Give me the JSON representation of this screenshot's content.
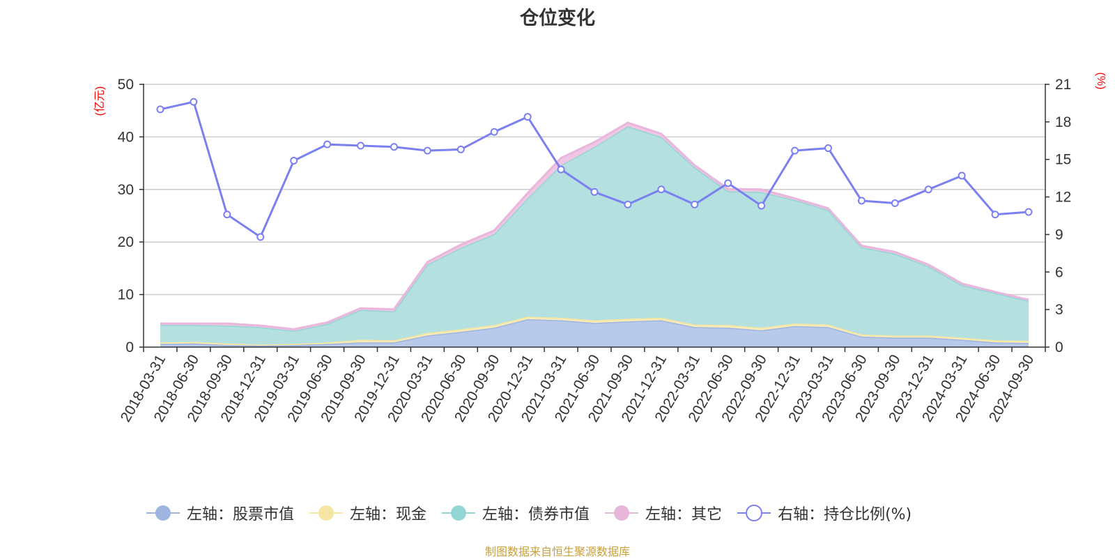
{
  "chart_data": {
    "type": "area",
    "title": "仓位变化",
    "y_left_label": "(亿元)",
    "y_right_label": "(%)",
    "y_left_lim": [
      0,
      50
    ],
    "y_left_ticks": [
      0,
      10,
      20,
      30,
      40,
      50
    ],
    "y_right_lim": [
      0,
      21
    ],
    "y_right_ticks": [
      0,
      3,
      6,
      9,
      12,
      15,
      18,
      21
    ],
    "grid": true,
    "legend_position": "bottom",
    "x": [
      "2018-03-31",
      "2018-06-30",
      "2018-09-30",
      "2018-12-31",
      "2019-03-31",
      "2019-06-30",
      "2019-09-30",
      "2019-12-31",
      "2020-03-31",
      "2020-06-30",
      "2020-09-30",
      "2020-12-31",
      "2021-03-31",
      "2021-06-30",
      "2021-09-30",
      "2021-12-31",
      "2022-03-31",
      "2022-06-30",
      "2022-09-30",
      "2022-12-31",
      "2023-03-31",
      "2023-06-30",
      "2023-09-30",
      "2023-12-31",
      "2024-03-31",
      "2024-06-30",
      "2024-09-30"
    ],
    "series": [
      {
        "name": "左轴：股票市值",
        "axis": "left",
        "stack": true,
        "color": "#9db5e0",
        "fill": "#b8c9ea",
        "values": [
          0.6,
          0.7,
          0.4,
          0.3,
          0.4,
          0.6,
          0.9,
          0.9,
          2.2,
          2.9,
          3.7,
          5.3,
          5.1,
          4.6,
          4.9,
          5.1,
          3.8,
          3.7,
          3.2,
          4.0,
          3.8,
          2.0,
          1.8,
          1.8,
          1.4,
          0.9,
          0.8
        ]
      },
      {
        "name": "左轴：现金",
        "axis": "left",
        "stack": true,
        "color": "#f6e6a3",
        "fill": "#f7eab8",
        "values": [
          0.3,
          0.3,
          0.3,
          0.2,
          0.2,
          0.3,
          0.5,
          0.4,
          0.5,
          0.5,
          0.5,
          0.5,
          0.5,
          0.5,
          0.5,
          0.5,
          0.5,
          0.5,
          0.5,
          0.5,
          0.5,
          0.4,
          0.4,
          0.4,
          0.4,
          0.4,
          0.4
        ]
      },
      {
        "name": "左轴：债券市值",
        "axis": "left",
        "stack": true,
        "color": "#94d5d6",
        "fill": "#b4e0e0",
        "values": [
          3.3,
          3.2,
          3.4,
          3.3,
          2.5,
          3.5,
          5.7,
          5.5,
          13.0,
          15.5,
          17.3,
          22.5,
          29.0,
          33.0,
          36.6,
          34.4,
          29.9,
          25.5,
          25.8,
          23.5,
          21.8,
          16.6,
          15.6,
          13.2,
          10.0,
          9.0,
          7.6
        ]
      },
      {
        "name": "左轴：其它",
        "axis": "left",
        "stack": true,
        "color": "#e9b6dc",
        "fill": "#efc6e3",
        "values": [
          0.3,
          0.3,
          0.4,
          0.3,
          0.3,
          0.3,
          0.3,
          0.4,
          0.5,
          0.6,
          0.7,
          1.0,
          1.4,
          0.9,
          0.7,
          0.6,
          0.4,
          0.4,
          0.5,
          0.3,
          0.3,
          0.3,
          0.3,
          0.3,
          0.3,
          0.2,
          0.2
        ]
      },
      {
        "name": "右轴：持仓比例(%)",
        "axis": "right",
        "stack": false,
        "color": "#7b80f0",
        "values": [
          19.0,
          19.6,
          10.6,
          8.8,
          14.9,
          16.2,
          16.1,
          16.0,
          15.7,
          15.8,
          17.2,
          18.4,
          14.2,
          12.4,
          11.4,
          12.6,
          11.4,
          13.1,
          11.3,
          15.7,
          15.9,
          11.7,
          11.5,
          12.6,
          13.7,
          10.6,
          10.8
        ]
      }
    ]
  },
  "footer": "制图数据来自恒生聚源数据库"
}
